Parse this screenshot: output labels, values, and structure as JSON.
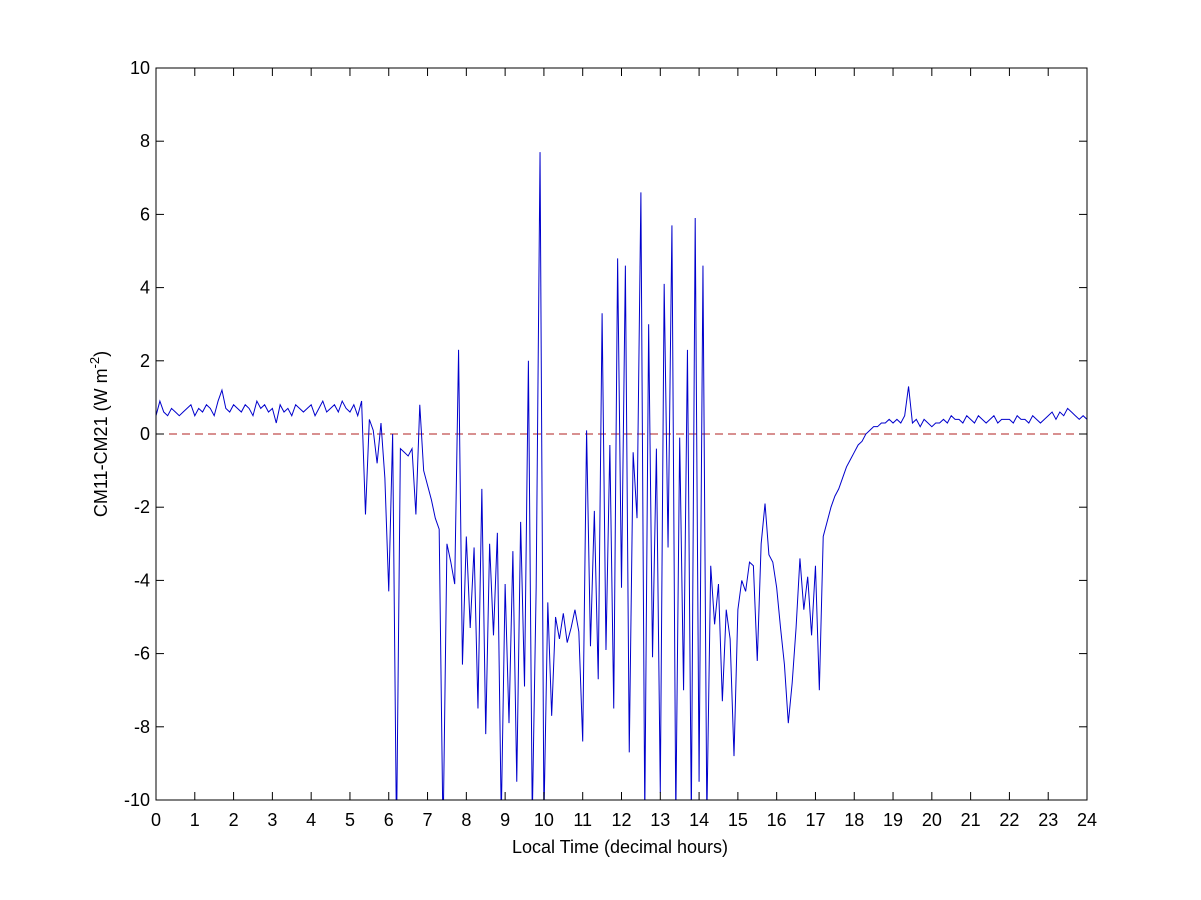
{
  "chart_data": {
    "type": "line",
    "xlabel": "Local Time (decimal hours)",
    "ylabel": {
      "text": "CM11-CM21 (W m",
      "sup": "-2",
      "close": ")"
    },
    "xlim": [
      0,
      24
    ],
    "xticks": [
      0,
      1,
      2,
      3,
      4,
      5,
      6,
      7,
      8,
      9,
      10,
      11,
      12,
      13,
      14,
      15,
      16,
      17,
      18,
      19,
      20,
      21,
      22,
      23,
      24
    ],
    "ylim": [
      -10,
      10
    ],
    "yticks": [
      -10,
      -8,
      -6,
      -4,
      -2,
      0,
      2,
      4,
      6,
      8,
      10
    ],
    "reference_line": {
      "value": 0,
      "color": "#b22222"
    },
    "x": [
      0,
      0.1,
      0.2,
      0.3,
      0.4,
      0.5,
      0.6,
      0.7,
      0.8,
      0.9,
      1,
      1.1,
      1.2,
      1.3,
      1.4,
      1.5,
      1.6,
      1.7,
      1.8,
      1.9,
      2,
      2.1,
      2.2,
      2.3,
      2.4,
      2.5,
      2.6,
      2.7,
      2.8,
      2.9,
      3,
      3.1,
      3.2,
      3.3,
      3.4,
      3.5,
      3.6,
      3.7,
      3.8,
      3.9,
      4,
      4.1,
      4.2,
      4.3,
      4.4,
      4.5,
      4.6,
      4.7,
      4.8,
      4.9,
      5,
      5.1,
      5.2,
      5.3,
      5.4,
      5.5,
      5.6,
      5.7,
      5.8,
      5.9,
      6,
      6.1,
      6.2,
      6.3,
      6.4,
      6.5,
      6.6,
      6.7,
      6.8,
      6.9,
      7,
      7.1,
      7.2,
      7.3,
      7.4,
      7.5,
      7.6,
      7.7,
      7.8,
      7.9,
      8,
      8.1,
      8.2,
      8.3,
      8.4,
      8.5,
      8.6,
      8.7,
      8.8,
      8.9,
      9,
      9.1,
      9.2,
      9.3,
      9.4,
      9.5,
      9.6,
      9.7,
      9.8,
      9.9,
      10,
      10.1,
      10.2,
      10.3,
      10.4,
      10.5,
      10.6,
      10.7,
      10.8,
      10.9,
      11,
      11.1,
      11.2,
      11.3,
      11.4,
      11.5,
      11.6,
      11.7,
      11.8,
      11.9,
      12,
      12.1,
      12.2,
      12.3,
      12.4,
      12.5,
      12.6,
      12.7,
      12.8,
      12.9,
      13,
      13.1,
      13.2,
      13.3,
      13.4,
      13.5,
      13.6,
      13.7,
      13.8,
      13.9,
      14,
      14.1,
      14.2,
      14.3,
      14.4,
      14.5,
      14.6,
      14.7,
      14.8,
      14.9,
      15,
      15.1,
      15.2,
      15.3,
      15.4,
      15.5,
      15.6,
      15.7,
      15.8,
      15.9,
      16,
      16.1,
      16.2,
      16.3,
      16.4,
      16.5,
      16.6,
      16.7,
      16.8,
      16.9,
      17,
      17.1,
      17.2,
      17.3,
      17.4,
      17.5,
      17.6,
      17.7,
      17.8,
      17.9,
      18,
      18.1,
      18.2,
      18.3,
      18.4,
      18.5,
      18.6,
      18.7,
      18.8,
      18.9,
      19,
      19.1,
      19.2,
      19.3,
      19.4,
      19.5,
      19.6,
      19.7,
      19.8,
      19.9,
      20,
      20.1,
      20.2,
      20.3,
      20.4,
      20.5,
      20.6,
      20.7,
      20.8,
      20.9,
      21,
      21.1,
      21.2,
      21.3,
      21.4,
      21.5,
      21.6,
      21.7,
      21.8,
      21.9,
      22,
      22.1,
      22.2,
      22.3,
      22.4,
      22.5,
      22.6,
      22.7,
      22.8,
      22.9,
      23,
      23.1,
      23.2,
      23.3,
      23.4,
      23.5,
      23.6,
      23.7,
      23.8,
      23.9,
      24
    ],
    "series": [
      {
        "color": "#0000cc",
        "values": [
          0.5,
          0.9,
          0.6,
          0.5,
          0.7,
          0.6,
          0.5,
          0.6,
          0.7,
          0.8,
          0.5,
          0.7,
          0.6,
          0.8,
          0.7,
          0.5,
          0.9,
          1.2,
          0.7,
          0.6,
          0.8,
          0.7,
          0.6,
          0.8,
          0.7,
          0.5,
          0.9,
          0.7,
          0.8,
          0.6,
          0.7,
          0.3,
          0.8,
          0.6,
          0.7,
          0.5,
          0.8,
          0.7,
          0.6,
          0.7,
          0.8,
          0.5,
          0.7,
          0.9,
          0.6,
          0.7,
          0.8,
          0.6,
          0.9,
          0.7,
          0.6,
          0.8,
          0.5,
          0.9,
          -2.2,
          0.4,
          0.1,
          -0.8,
          0.3,
          -1.2,
          -4.3,
          0.0,
          -11,
          -0.4,
          -0.5,
          -0.6,
          -0.4,
          -2.2,
          0.8,
          -1.0,
          -1.4,
          -1.8,
          -2.3,
          -2.6,
          -11,
          -3.0,
          -3.5,
          -4.1,
          2.3,
          -6.3,
          -2.8,
          -5.3,
          -3.1,
          -7.5,
          -1.5,
          -8.2,
          -3.0,
          -5.5,
          -2.7,
          -10.5,
          -4.1,
          -7.9,
          -3.2,
          -9.5,
          -2.4,
          -6.9,
          2.0,
          -10.5,
          -4.2,
          7.7,
          -10.5,
          -4.6,
          -7.7,
          -5.0,
          -5.6,
          -4.9,
          -5.7,
          -5.3,
          -4.8,
          -5.4,
          -8.4,
          0.1,
          -5.8,
          -2.1,
          -6.7,
          3.3,
          -5.9,
          -0.3,
          -7.5,
          4.8,
          -4.2,
          4.6,
          -8.7,
          -0.5,
          -2.3,
          6.6,
          -10.5,
          3.0,
          -6.1,
          -0.4,
          -9.8,
          4.1,
          -3.1,
          5.7,
          -10.5,
          -0.1,
          -7.0,
          2.3,
          -10.5,
          5.9,
          -9.5,
          4.6,
          -10.5,
          -3.6,
          -5.2,
          -4.1,
          -7.3,
          -4.8,
          -5.6,
          -8.8,
          -4.8,
          -4.0,
          -4.3,
          -3.5,
          -3.6,
          -6.2,
          -3.0,
          -1.9,
          -3.3,
          -3.5,
          -4.2,
          -5.3,
          -6.3,
          -7.9,
          -6.8,
          -5.3,
          -3.4,
          -4.8,
          -3.9,
          -5.5,
          -3.6,
          -7.0,
          -2.8,
          -2.4,
          -2.0,
          -1.7,
          -1.5,
          -1.2,
          -0.9,
          -0.7,
          -0.5,
          -0.3,
          -0.2,
          0.0,
          0.1,
          0.2,
          0.2,
          0.3,
          0.3,
          0.4,
          0.3,
          0.4,
          0.3,
          0.5,
          1.3,
          0.3,
          0.4,
          0.2,
          0.4,
          0.3,
          0.2,
          0.3,
          0.3,
          0.4,
          0.3,
          0.5,
          0.4,
          0.4,
          0.3,
          0.5,
          0.4,
          0.3,
          0.5,
          0.4,
          0.3,
          0.4,
          0.5,
          0.3,
          0.4,
          0.4,
          0.4,
          0.3,
          0.5,
          0.4,
          0.4,
          0.3,
          0.5,
          0.4,
          0.3,
          0.4,
          0.5,
          0.6,
          0.4,
          0.6,
          0.5,
          0.7,
          0.6,
          0.5,
          0.4,
          0.5,
          0.4
        ]
      }
    ]
  }
}
